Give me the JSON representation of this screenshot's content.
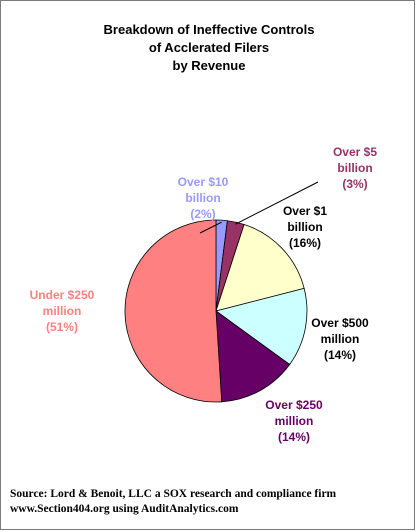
{
  "chart_data": {
    "type": "pie",
    "title": [
      "Breakdown of Ineffective Controls",
      "of Acclerated Filers",
      "by Revenue"
    ],
    "slices": [
      {
        "label": [
          "Over $10",
          "billion",
          "(2%)"
        ],
        "value": 2,
        "color": "#9999ff",
        "label_color": "#9999ff"
      },
      {
        "label": [
          "Over $5",
          "billion",
          "(3%)"
        ],
        "value": 3,
        "color": "#993366",
        "label_color": "#993366"
      },
      {
        "label": [
          "Over $1",
          "billion",
          "(16%)"
        ],
        "value": 16,
        "color": "#ffffcc",
        "label_color": "#000000"
      },
      {
        "label": [
          "Over $500",
          "million",
          "(14%)"
        ],
        "value": 14,
        "color": "#ccffff",
        "label_color": "#000000"
      },
      {
        "label": [
          "Over $250",
          "million",
          "(14%)"
        ],
        "value": 14,
        "color": "#660066",
        "label_color": "#660066"
      },
      {
        "label": [
          "Under $250",
          "million",
          "(51%)"
        ],
        "value": 51,
        "color": "#ff8080",
        "label_color": "#ff8080"
      }
    ],
    "start": "12 o'clock",
    "direction": "clockwise",
    "legend": "none"
  },
  "source": {
    "line1": "Source: Lord & Benoit, LLC a SOX research and compliance firm",
    "line2": "www.Section404.org using AuditAnalytics.com"
  }
}
